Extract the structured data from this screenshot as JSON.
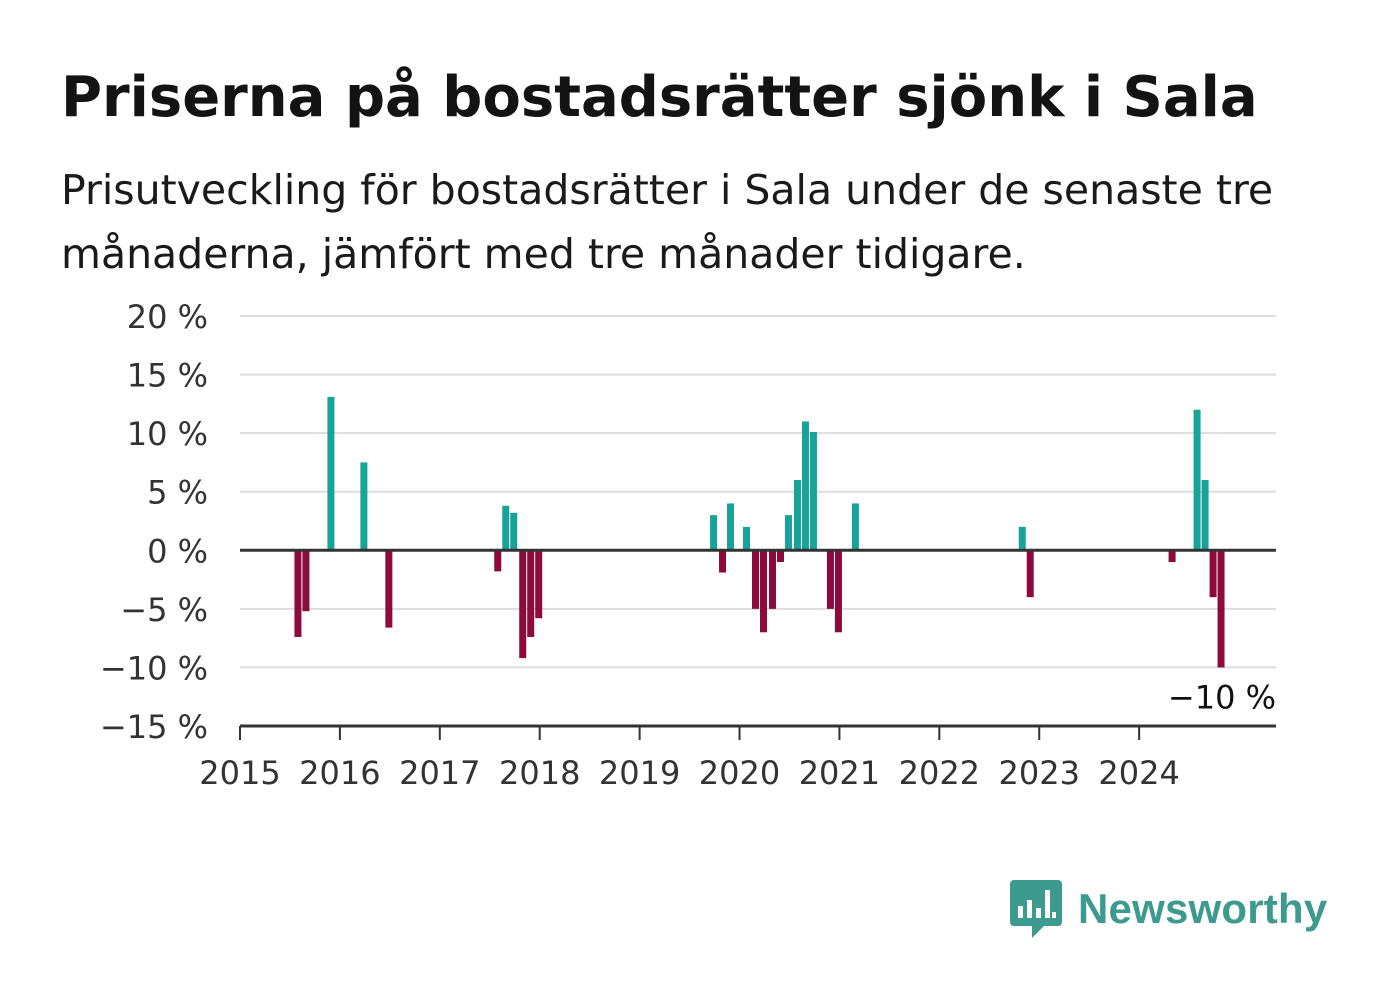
{
  "title": "Priserna på bostadsrätter sjönk i Sala",
  "subtitle": "Prisutveckling för bostadsrätter i Sala under de senaste tre månaderna, jämfört med tre månader tidigare.",
  "brand": {
    "name": "Newsworthy",
    "icon": "newsworthy-logo-icon"
  },
  "colors": {
    "positive": "#17a398",
    "negative": "#8c0a3c",
    "grid": "#dddddd",
    "axis": "#333333"
  },
  "chart_data": {
    "type": "bar",
    "x_unit": "year",
    "ylim": [
      -15,
      20
    ],
    "xlim": [
      2015,
      2025.37
    ],
    "y_ticks": [
      -15,
      -10,
      -5,
      0,
      5,
      10,
      15,
      20
    ],
    "y_tick_labels": [
      "−15 %",
      "−10 %",
      "−5 %",
      "0 %",
      "5 %",
      "10 %",
      "15 %",
      "20 %"
    ],
    "x_ticks": [
      2015,
      2016,
      2017,
      2018,
      2019,
      2020,
      2021,
      2022,
      2023,
      2024
    ],
    "x_tick_labels": [
      "2015",
      "2016",
      "2017",
      "2018",
      "2019",
      "2020",
      "2021",
      "2022",
      "2023",
      "2024"
    ],
    "grid": true,
    "annotation": {
      "text": "−10 %",
      "x": 2024.79,
      "y": -10
    },
    "points": [
      {
        "x": 2015.58,
        "y": -7.4
      },
      {
        "x": 2015.66,
        "y": -5.2
      },
      {
        "x": 2015.91,
        "y": 13.1
      },
      {
        "x": 2016.24,
        "y": 7.5
      },
      {
        "x": 2016.49,
        "y": -6.6
      },
      {
        "x": 2017.58,
        "y": -1.8
      },
      {
        "x": 2017.66,
        "y": 3.8
      },
      {
        "x": 2017.74,
        "y": 3.2
      },
      {
        "x": 2017.83,
        "y": -9.2
      },
      {
        "x": 2017.91,
        "y": -7.4
      },
      {
        "x": 2017.99,
        "y": -5.8
      },
      {
        "x": 2019.74,
        "y": 3.0
      },
      {
        "x": 2019.83,
        "y": -1.9
      },
      {
        "x": 2019.91,
        "y": 4.0
      },
      {
        "x": 2020.07,
        "y": 2.0
      },
      {
        "x": 2020.16,
        "y": -5.0
      },
      {
        "x": 2020.24,
        "y": -7.0
      },
      {
        "x": 2020.33,
        "y": -5.0
      },
      {
        "x": 2020.41,
        "y": -1.0
      },
      {
        "x": 2020.49,
        "y": 3.0
      },
      {
        "x": 2020.58,
        "y": 6.0
      },
      {
        "x": 2020.66,
        "y": 11.0
      },
      {
        "x": 2020.74,
        "y": 10.1
      },
      {
        "x": 2020.91,
        "y": -5.0
      },
      {
        "x": 2020.99,
        "y": -7.0
      },
      {
        "x": 2021.16,
        "y": 4.0
      },
      {
        "x": 2022.83,
        "y": 2.0
      },
      {
        "x": 2022.91,
        "y": -4.0
      },
      {
        "x": 2024.33,
        "y": -1.0
      },
      {
        "x": 2024.58,
        "y": 12.0
      },
      {
        "x": 2024.66,
        "y": 6.0
      },
      {
        "x": 2024.74,
        "y": -4.0
      },
      {
        "x": 2024.82,
        "y": -10.0
      }
    ]
  }
}
